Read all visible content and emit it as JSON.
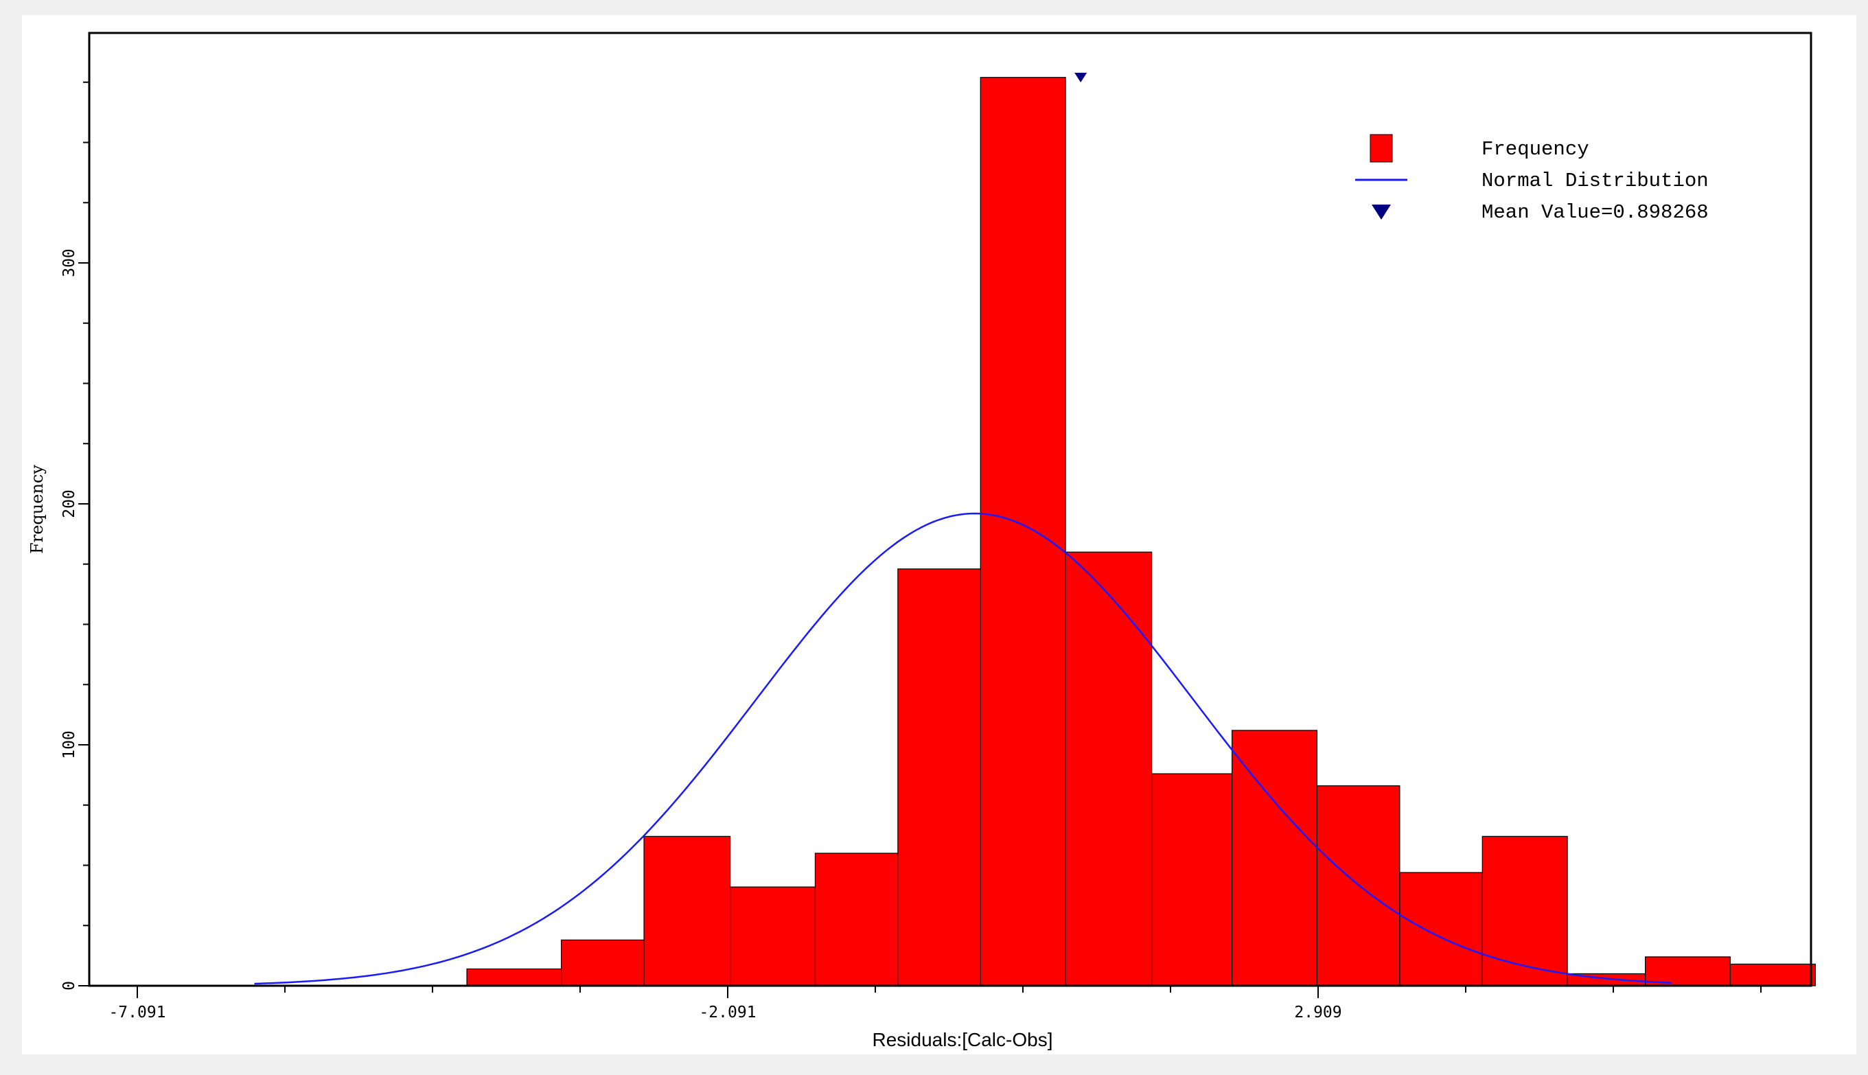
{
  "chart_data": {
    "type": "bar",
    "title": "",
    "xlabel": "Residuals:[Calc-Obs]",
    "ylabel": "Frequency",
    "xlim": [
      -7.4,
      7.6
    ],
    "ylim": [
      0,
      390
    ],
    "x_ticks": [
      "-7.091",
      "-2.091",
      "2.909"
    ],
    "y_ticks": [
      "0",
      "100",
      "200",
      "300"
    ],
    "grid": false,
    "legend_position": "top-right",
    "bins": {
      "edges": [
        -4.3,
        -3.5,
        -2.8,
        -2.07,
        -1.35,
        -0.65,
        0.05,
        0.77,
        1.5,
        2.18,
        2.9,
        3.6,
        4.3,
        5.02,
        5.68,
        6.4,
        7.12
      ],
      "values": [
        7,
        19,
        62,
        41,
        55,
        173,
        377,
        180,
        88,
        106,
        83,
        47,
        62,
        5,
        12,
        9
      ]
    },
    "series": [
      {
        "name": "Frequency",
        "type": "bar",
        "color": "#ff0000"
      },
      {
        "name": "Normal Distribution",
        "type": "line",
        "color": "#1a1aff",
        "mean": 0.0,
        "std": 1.85,
        "peak": 196,
        "x_range": [
          -6.1,
          5.9
        ]
      },
      {
        "name": "Mean Value=0.898268",
        "type": "marker",
        "color": "#000080",
        "x": 0.898268
      }
    ],
    "legend": [
      {
        "label": "Frequency",
        "symbol": "square",
        "color": "#ff0000"
      },
      {
        "label": "Normal Distribution",
        "symbol": "line",
        "color": "#1a1aff"
      },
      {
        "label": "Mean Value=0.898268",
        "symbol": "triangle",
        "color": "#000080"
      }
    ]
  }
}
